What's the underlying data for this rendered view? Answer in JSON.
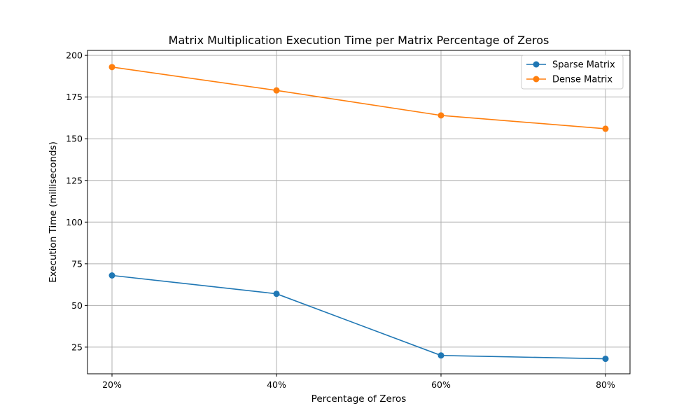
{
  "chart_data": {
    "type": "line",
    "title": "Matrix Multiplication Execution Time per Matrix Percentage of Zeros",
    "xlabel": "Percentage of Zeros",
    "ylabel": "Execution Time (milliseconds)",
    "categories": [
      "20%",
      "40%",
      "60%",
      "80%"
    ],
    "ylim": [
      9,
      203
    ],
    "yticks": [
      25,
      50,
      75,
      100,
      125,
      150,
      175,
      200
    ],
    "grid": true,
    "legend_position": "upper right",
    "series": [
      {
        "name": "Sparse Matrix",
        "values": [
          68,
          57,
          20,
          18
        ],
        "color": "#1f77b4"
      },
      {
        "name": "Dense Matrix",
        "values": [
          193,
          179,
          164,
          156
        ],
        "color": "#ff7f0e"
      }
    ]
  }
}
